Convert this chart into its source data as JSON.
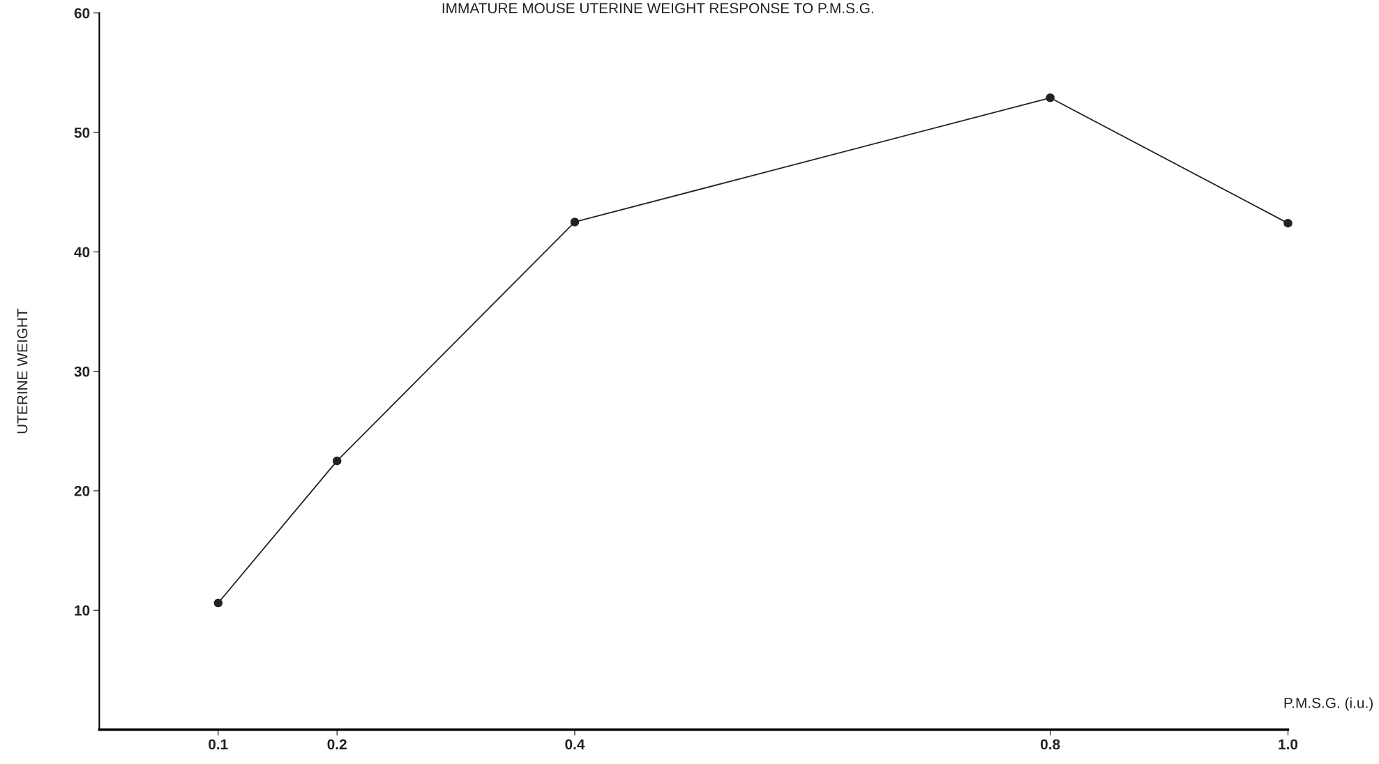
{
  "chart_data": {
    "type": "line",
    "title": "IMMATURE MOUSE UTERINE WEIGHT RESPONSE TO P.M.S.G.",
    "xlabel": "P.M.S.G. (i.u.)",
    "ylabel": "UTERINE WEIGHT",
    "x": [
      0.1,
      0.2,
      0.4,
      0.8,
      1.0
    ],
    "series": [
      {
        "color": "#222222",
        "values": [
          10.6,
          22.5,
          42.5,
          52.9,
          42.4
        ]
      }
    ],
    "xlim": [
      0,
      1.0
    ],
    "xticks": [
      0.1,
      0.2,
      0.4,
      0.8,
      {
        "value": 1.0,
        "label": "1.0"
      }
    ],
    "ylim": [
      0,
      60
    ],
    "yticks": [
      10,
      20,
      30,
      40,
      50,
      60
    ],
    "marker": "circle",
    "line_style": "solid",
    "grid": false
  }
}
